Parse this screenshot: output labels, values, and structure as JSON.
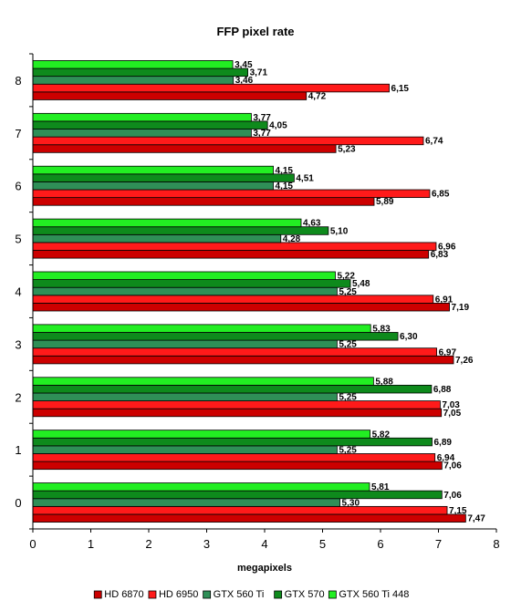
{
  "chart_data": {
    "type": "bar",
    "orientation": "horizontal",
    "title": "FFP pixel rate",
    "xlabel": "megapixels",
    "ylabel": "",
    "xlim": [
      0,
      8
    ],
    "x_ticks": [
      "0",
      "1",
      "2",
      "3",
      "4",
      "5",
      "6",
      "7",
      "8"
    ],
    "grid": false,
    "legend_position": "bottom",
    "categories": [
      "0",
      "1",
      "2",
      "3",
      "4",
      "5",
      "6",
      "7",
      "8"
    ],
    "series": [
      {
        "name": "HD 6870",
        "color": "#cc0000",
        "values": [
          7.47,
          7.06,
          7.05,
          7.26,
          7.19,
          6.83,
          5.89,
          5.23,
          4.72
        ],
        "labels": [
          "7,47",
          "7,06",
          "7,05",
          "7,26",
          "7,19",
          "6,83",
          "5,89",
          "5,23",
          "4,72"
        ]
      },
      {
        "name": "HD 6950",
        "color": "#ff1a1a",
        "values": [
          7.15,
          6.94,
          7.03,
          6.97,
          6.91,
          6.96,
          6.85,
          6.74,
          6.15
        ],
        "labels": [
          "7,15",
          "6,94",
          "7,03",
          "6,97",
          "6,91",
          "6,96",
          "6,85",
          "6,74",
          "6,15"
        ]
      },
      {
        "name": "GTX 560 Ti",
        "color": "#2f8f57",
        "values": [
          5.3,
          5.25,
          5.25,
          5.25,
          5.25,
          4.28,
          4.15,
          3.77,
          3.46
        ],
        "labels": [
          "5,30",
          "5,25",
          "5,25",
          "5,25",
          "5,25",
          "4,28",
          "4,15",
          "3,77",
          "3,46"
        ]
      },
      {
        "name": "GTX 570",
        "color": "#0e8a1c",
        "values": [
          7.06,
          6.89,
          6.88,
          6.3,
          5.48,
          5.1,
          4.51,
          4.05,
          3.71
        ],
        "labels": [
          "7,06",
          "6,89",
          "6,88",
          "6,30",
          "5,48",
          "5,10",
          "4,51",
          "4,05",
          "3,71"
        ]
      },
      {
        "name": "GTX 560 Ti 448",
        "color": "#22ee22",
        "values": [
          5.81,
          5.82,
          5.88,
          5.83,
          5.22,
          4.63,
          4.15,
          3.77,
          3.45
        ],
        "labels": [
          "5,81",
          "5,82",
          "5,88",
          "5,83",
          "5,22",
          "4,63",
          "4,15",
          "3,77",
          "3,45"
        ]
      }
    ]
  }
}
